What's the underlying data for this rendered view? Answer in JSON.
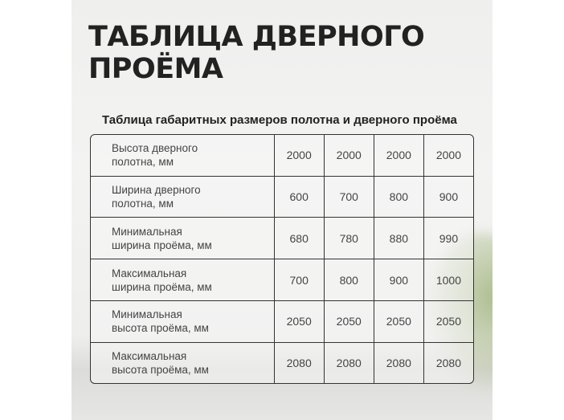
{
  "title_line1": "ТАБЛИЦА ДВЕРНОГО",
  "title_line2": "ПРОЁМА",
  "subtitle": "Таблица габаритных размеров полотна и дверного проёма",
  "rows": [
    {
      "label1": "Высота дверного",
      "label2": "полотна, мм",
      "values": [
        "2000",
        "2000",
        "2000",
        "2000"
      ]
    },
    {
      "label1": "Ширина дверного",
      "label2": "полотна, мм",
      "values": [
        "600",
        "700",
        "800",
        "900"
      ]
    },
    {
      "label1": "Минимальная",
      "label2": "ширина проёма, мм",
      "values": [
        "680",
        "780",
        "880",
        "990"
      ]
    },
    {
      "label1": "Максимальная",
      "label2": "ширина проёма, мм",
      "values": [
        "700",
        "800",
        "900",
        "1000"
      ]
    },
    {
      "label1": "Минимальная",
      "label2": "высота проёма, мм",
      "values": [
        "2050",
        "2050",
        "2050",
        "2050"
      ]
    },
    {
      "label1": "Максимальная",
      "label2": "высота проёма, мм",
      "values": [
        "2080",
        "2080",
        "2080",
        "2080"
      ]
    }
  ]
}
